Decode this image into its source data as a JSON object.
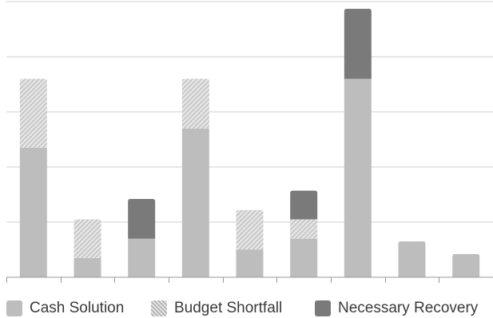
{
  "chart_data": {
    "type": "bar",
    "stacked": true,
    "categories": [
      "",
      "",
      "",
      "",
      "",
      "",
      "",
      "",
      ""
    ],
    "series": [
      {
        "name": "Cash Solution",
        "values": [
          2.35,
          0.35,
          0.7,
          2.7,
          0.5,
          0.7,
          3.6,
          0.65,
          0.42
        ],
        "color": "#bdbdbd",
        "pattern": "solid"
      },
      {
        "name": "Budget Shortfall",
        "values": [
          1.25,
          0.7,
          0,
          0.9,
          0.72,
          0.35,
          0,
          0,
          0
        ],
        "color": "#c4c4c4",
        "pattern": "hatched"
      },
      {
        "name": "Necessary Recovery",
        "values": [
          0,
          0,
          0.72,
          0,
          0,
          0.52,
          1.27,
          0,
          0
        ],
        "color": "#7a7a7a",
        "pattern": "solid"
      }
    ],
    "ylim": [
      0,
      5
    ],
    "grid": true,
    "legend_position": "bottom",
    "title": "",
    "xlabel": "",
    "ylabel": ""
  }
}
